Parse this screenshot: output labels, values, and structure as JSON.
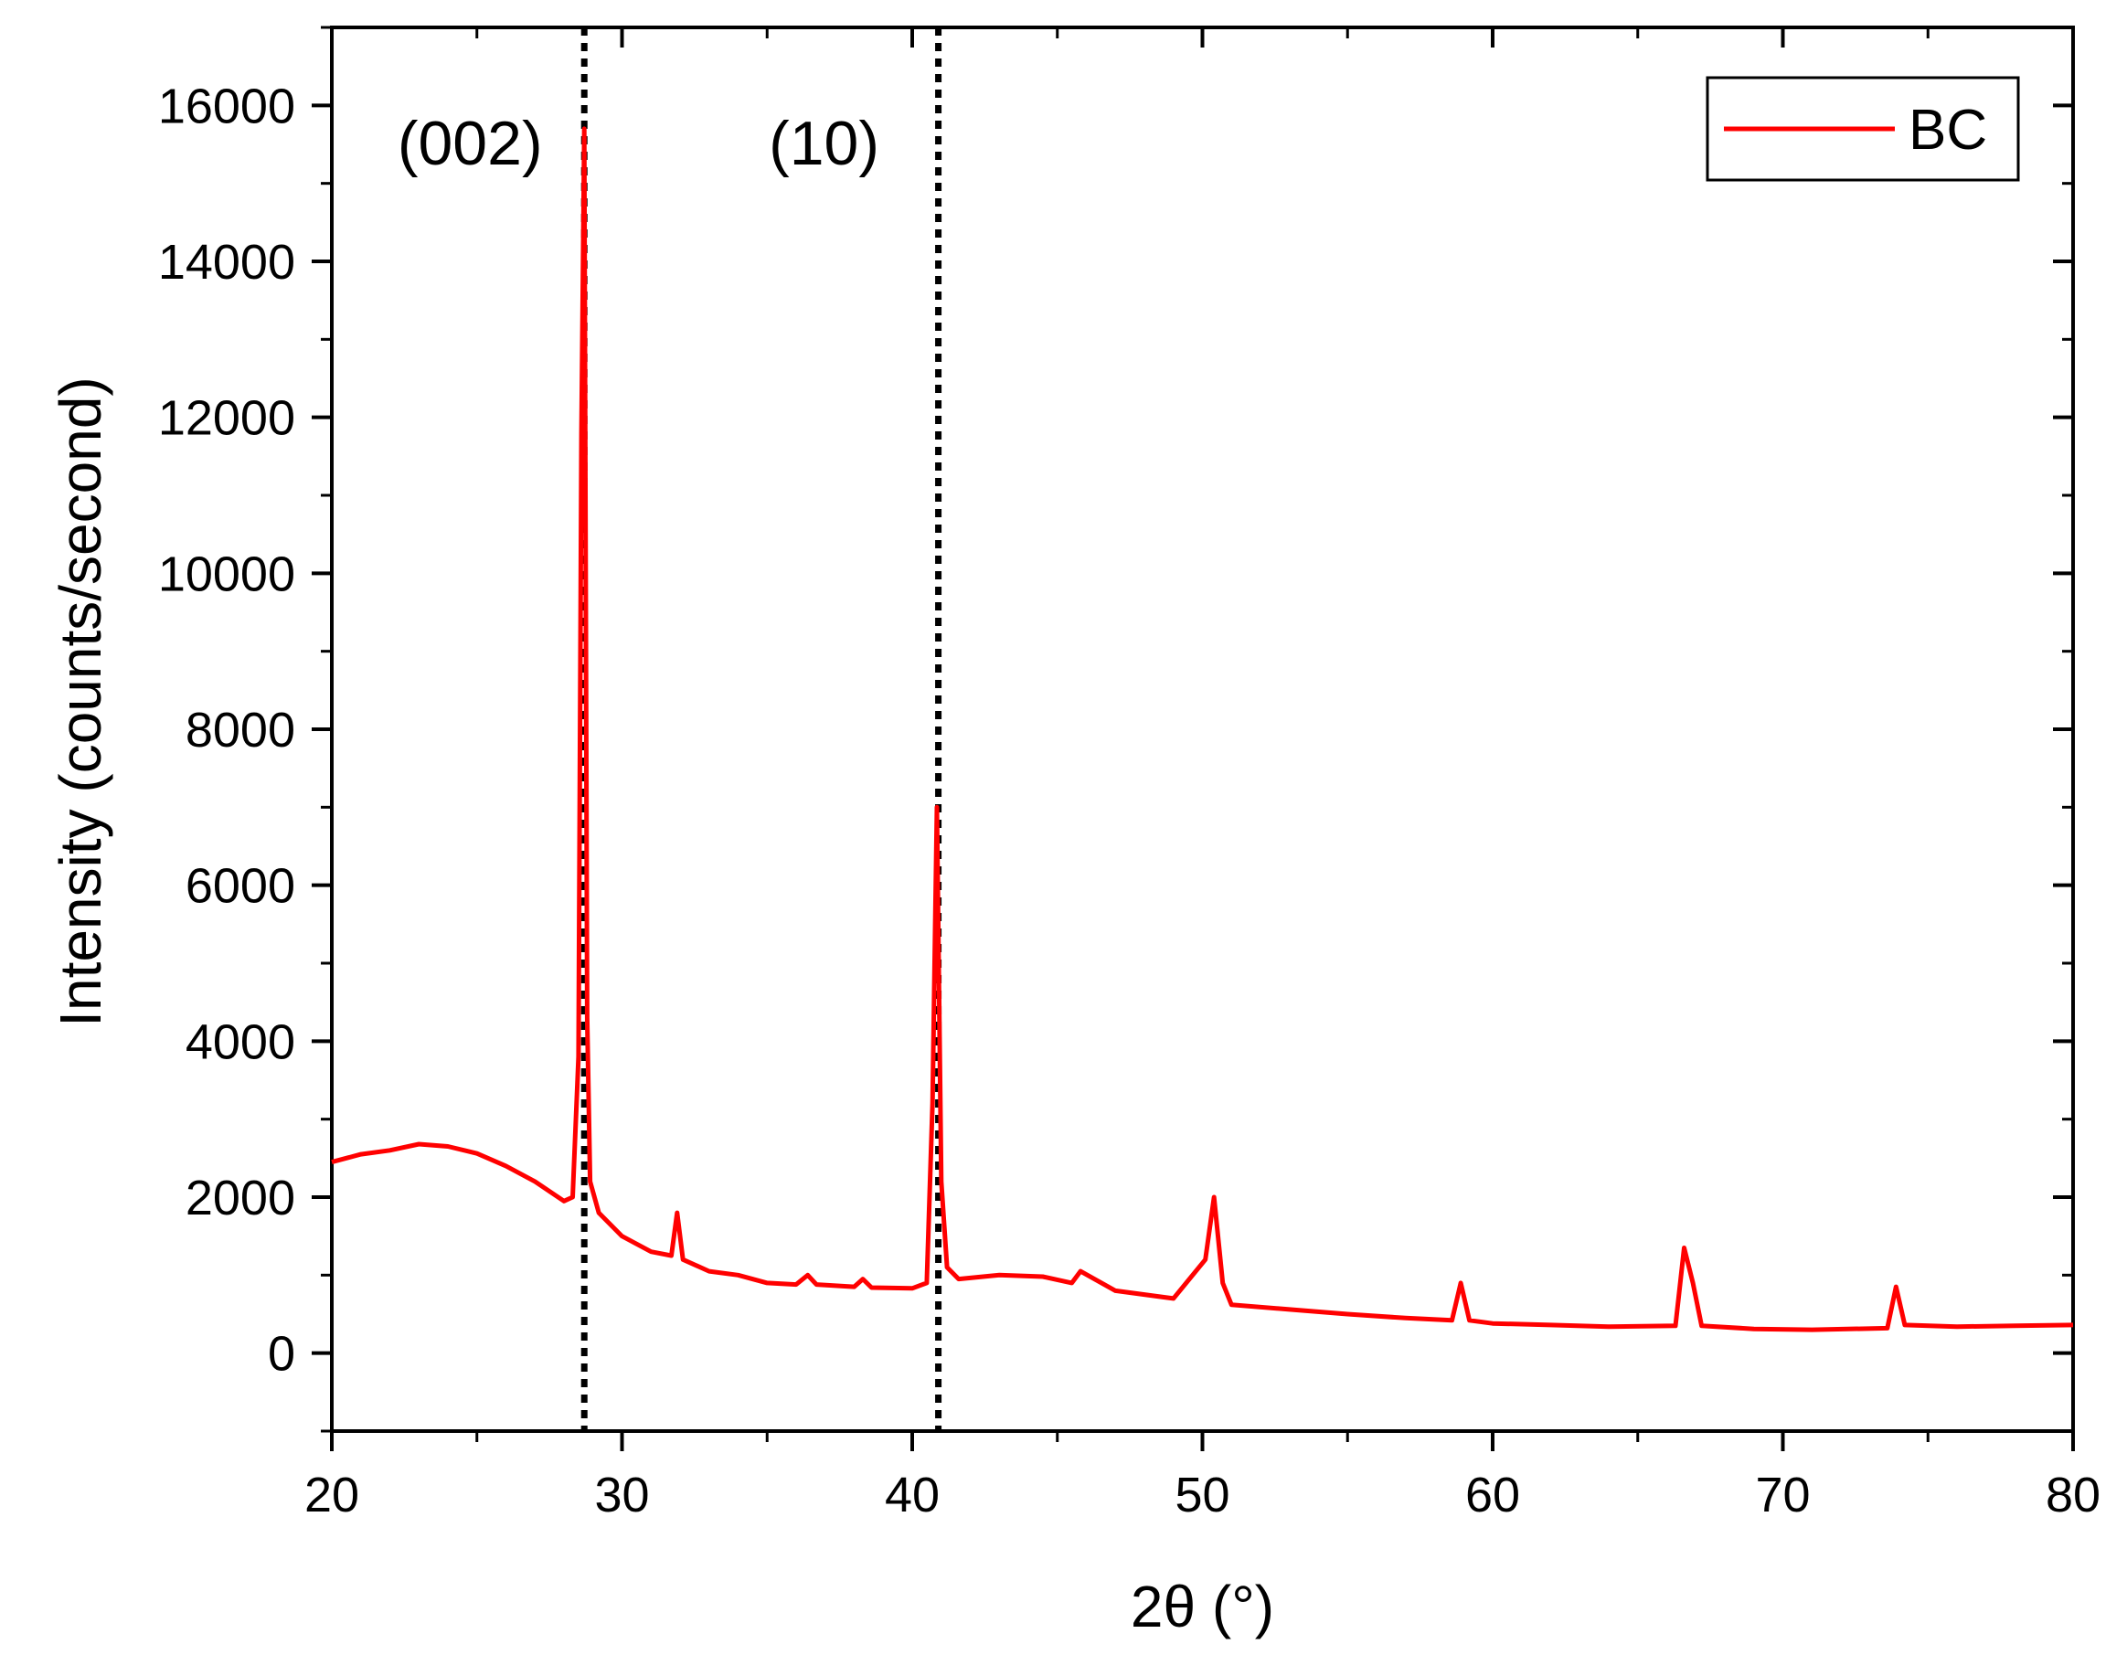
{
  "chart_data": {
    "type": "line",
    "title": "",
    "xlabel": "2θ (°)",
    "ylabel": "Intensity (counts/second)",
    "xlim": [
      20,
      80
    ],
    "ylim": [
      -1000,
      17000
    ],
    "xticks": [
      20,
      30,
      40,
      50,
      60,
      70,
      80
    ],
    "xtick_labels": [
      "20",
      "30",
      "40",
      "50",
      "60",
      "70",
      "80"
    ],
    "yticks": [
      0,
      2000,
      4000,
      6000,
      8000,
      10000,
      12000,
      14000,
      16000
    ],
    "ytick_labels": [
      "0",
      "2000",
      "4000",
      "6000",
      "8000",
      "10000",
      "12000",
      "14000",
      "16000"
    ],
    "grid": false,
    "legend_position": "top-right",
    "legend": [
      "BC"
    ],
    "annotations": [
      {
        "text": "(002)",
        "x": 28.7
      },
      {
        "text": "(10)",
        "x": 40.9
      }
    ],
    "reference_lines": [
      28.7,
      40.9
    ],
    "series": [
      {
        "name": "BC",
        "color": "#ff0000",
        "x": [
          20.0,
          21.0,
          22.0,
          23.0,
          24.0,
          25.0,
          26.0,
          27.0,
          28.0,
          28.3,
          28.5,
          28.6,
          28.7,
          28.8,
          28.9,
          29.2,
          30.0,
          31.0,
          31.7,
          31.9,
          32.1,
          33.0,
          34.0,
          35.0,
          36.0,
          36.4,
          36.7,
          38.0,
          38.3,
          38.6,
          40.0,
          40.5,
          40.7,
          40.85,
          41.0,
          41.2,
          41.6,
          43.0,
          44.5,
          45.5,
          45.8,
          47.0,
          49.0,
          50.1,
          50.4,
          50.7,
          51.0,
          53.0,
          55.0,
          57.0,
          58.6,
          58.9,
          59.2,
          60.0,
          62.0,
          64.0,
          66.3,
          66.6,
          66.9,
          67.2,
          69.0,
          71.0,
          73.6,
          73.9,
          74.2,
          76.0,
          78.0,
          80.0
        ],
        "y": [
          2450,
          2550,
          2600,
          2680,
          2650,
          2560,
          2400,
          2200,
          1950,
          2000,
          3800,
          11800,
          15700,
          4300,
          2200,
          1800,
          1500,
          1300,
          1250,
          1800,
          1200,
          1050,
          1000,
          900,
          880,
          1000,
          880,
          850,
          950,
          840,
          830,
          900,
          3200,
          7000,
          2200,
          1100,
          950,
          1000,
          980,
          900,
          1050,
          800,
          700,
          1200,
          2000,
          900,
          620,
          560,
          500,
          450,
          420,
          900,
          420,
          380,
          360,
          340,
          350,
          1350,
          900,
          350,
          310,
          300,
          320,
          850,
          360,
          340,
          350,
          360
        ]
      }
    ]
  }
}
